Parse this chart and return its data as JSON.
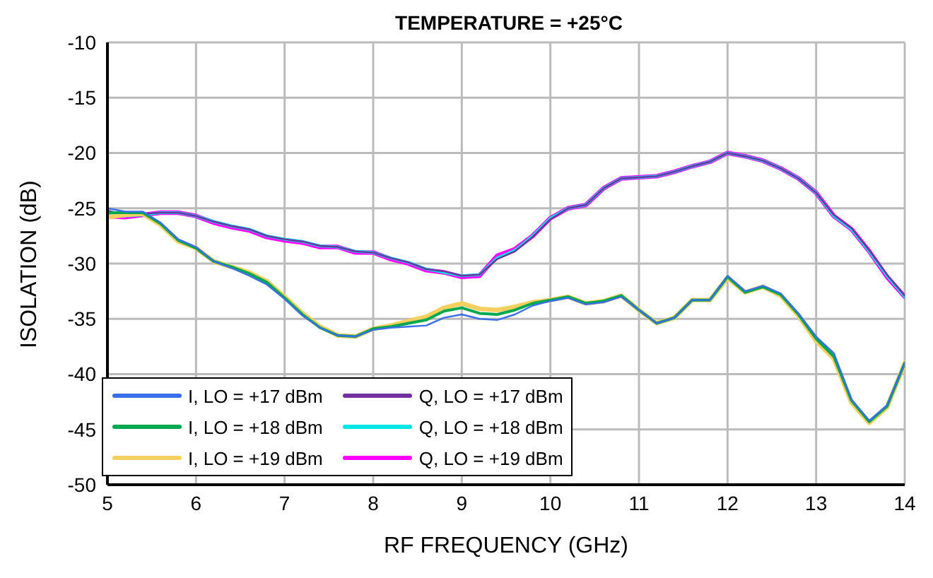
{
  "chart_data": {
    "type": "line",
    "title": "TEMPERATURE = +25°C",
    "xlabel": "RF FREQUENCY (GHz)",
    "ylabel": "ISOLATION (dB)",
    "x": [
      5,
      5.2,
      5.4,
      5.6,
      5.8,
      6,
      6.2,
      6.4,
      6.6,
      6.8,
      7,
      7.2,
      7.4,
      7.6,
      7.8,
      8,
      8.2,
      8.4,
      8.6,
      8.8,
      9,
      9.2,
      9.4,
      9.6,
      9.8,
      10,
      10.2,
      10.4,
      10.6,
      10.8,
      11,
      11.2,
      11.4,
      11.6,
      11.8,
      12,
      12.2,
      12.4,
      12.6,
      12.8,
      13,
      13.2,
      13.4,
      13.6,
      13.8,
      14
    ],
    "series": [
      {
        "name": "I, LO = +17 dBm",
        "color": "#3a6fe8",
        "values": [
          -25.0,
          -25.3,
          -25.3,
          -26.3,
          -27.8,
          -28.5,
          -29.8,
          -30.4,
          -31.1,
          -31.9,
          -33.2,
          -34.7,
          -35.8,
          -36.5,
          -36.6,
          -36.0,
          -35.8,
          -35.7,
          -35.6,
          -34.9,
          -34.6,
          -35.0,
          -35.1,
          -34.6,
          -33.8,
          -33.4,
          -33.1,
          -33.7,
          -33.5,
          -33.0,
          -34.2,
          -35.4,
          -34.9,
          -33.3,
          -33.3,
          -31.1,
          -32.5,
          -32.0,
          -32.7,
          -34.5,
          -36.6,
          -38.1,
          -42.3,
          -44.2,
          -42.8,
          -39.0
        ]
      },
      {
        "name": "I, LO = +18 dBm",
        "color": "#00a84f",
        "values": [
          -25.4,
          -25.4,
          -25.4,
          -26.4,
          -27.9,
          -28.6,
          -29.8,
          -30.3,
          -30.9,
          -31.7,
          -33.1,
          -34.6,
          -35.8,
          -36.5,
          -36.6,
          -35.9,
          -35.7,
          -35.4,
          -35.1,
          -34.3,
          -34.0,
          -34.5,
          -34.6,
          -34.2,
          -33.6,
          -33.3,
          -33.0,
          -33.6,
          -33.4,
          -32.9,
          -34.2,
          -35.4,
          -34.9,
          -33.3,
          -33.3,
          -31.2,
          -32.6,
          -32.1,
          -32.8,
          -34.6,
          -36.8,
          -38.4,
          -42.4,
          -44.3,
          -42.9,
          -39.0
        ]
      },
      {
        "name": "I, LO = +19 dBm",
        "color": "#f5d060",
        "values": [
          -25.8,
          -25.6,
          -25.5,
          -26.5,
          -28.0,
          -28.6,
          -29.8,
          -30.3,
          -30.8,
          -31.6,
          -33.0,
          -34.5,
          -35.7,
          -36.5,
          -36.6,
          -35.9,
          -35.6,
          -35.2,
          -34.8,
          -34.0,
          -33.6,
          -34.1,
          -34.2,
          -33.9,
          -33.5,
          -33.3,
          -33.0,
          -33.6,
          -33.4,
          -32.9,
          -34.2,
          -35.4,
          -34.9,
          -33.3,
          -33.3,
          -31.3,
          -32.6,
          -32.1,
          -32.9,
          -34.7,
          -37.0,
          -38.6,
          -42.6,
          -44.4,
          -43.0,
          -39.0
        ]
      },
      {
        "name": "Q, LO = +17 dBm",
        "color": "#7030a0",
        "values": [
          -25.2,
          -25.6,
          -25.5,
          -25.4,
          -25.4,
          -25.7,
          -26.2,
          -26.6,
          -26.9,
          -27.5,
          -27.8,
          -28.0,
          -28.4,
          -28.5,
          -28.9,
          -29.0,
          -29.5,
          -29.9,
          -30.5,
          -30.7,
          -31.1,
          -31.0,
          -29.6,
          -28.9,
          -27.6,
          -26.0,
          -25.0,
          -24.7,
          -23.2,
          -22.3,
          -22.2,
          -22.1,
          -21.7,
          -21.2,
          -20.8,
          -20.0,
          -20.3,
          -20.7,
          -21.4,
          -22.3,
          -23.6,
          -25.6,
          -26.8,
          -28.8,
          -31.0,
          -32.9
        ]
      },
      {
        "name": "Q, LO = +18 dBm",
        "color": "#00e5e5",
        "values": [
          -25.5,
          -25.7,
          -25.6,
          -25.4,
          -25.4,
          -25.7,
          -26.2,
          -26.6,
          -26.9,
          -27.5,
          -27.8,
          -28.0,
          -28.4,
          -28.5,
          -28.9,
          -29.0,
          -29.5,
          -29.9,
          -30.5,
          -30.8,
          -31.1,
          -31.0,
          -29.5,
          -28.8,
          -27.5,
          -25.9,
          -25.0,
          -24.7,
          -23.2,
          -22.3,
          -22.2,
          -22.1,
          -21.7,
          -21.2,
          -20.8,
          -20.0,
          -20.3,
          -20.7,
          -21.4,
          -22.3,
          -23.6,
          -25.7,
          -26.9,
          -28.9,
          -31.1,
          -33.0
        ]
      },
      {
        "name": "Q, LO = +19 dBm",
        "color": "#ff00ff",
        "values": [
          -25.7,
          -25.8,
          -25.6,
          -25.4,
          -25.4,
          -25.7,
          -26.3,
          -26.7,
          -27.0,
          -27.6,
          -27.9,
          -28.1,
          -28.5,
          -28.5,
          -29.0,
          -29.0,
          -29.6,
          -30.0,
          -30.6,
          -30.8,
          -31.2,
          -31.1,
          -29.3,
          -28.7,
          -27.5,
          -25.9,
          -25.0,
          -24.7,
          -23.2,
          -22.3,
          -22.2,
          -22.1,
          -21.7,
          -21.2,
          -20.8,
          -20.0,
          -20.3,
          -20.7,
          -21.4,
          -22.3,
          -23.6,
          -25.7,
          -26.9,
          -28.9,
          -31.2,
          -33.0
        ]
      }
    ],
    "xlim": [
      5,
      14
    ],
    "xticks": [
      5,
      6,
      7,
      8,
      9,
      10,
      11,
      12,
      13,
      14
    ],
    "ylim": [
      -50,
      -10
    ],
    "yticks": [
      -50,
      -45,
      -40,
      -35,
      -30,
      -25,
      -20,
      -15,
      -10
    ],
    "grid": true,
    "legend": "bottom left",
    "marker": "none",
    "line_style": "solid"
  }
}
